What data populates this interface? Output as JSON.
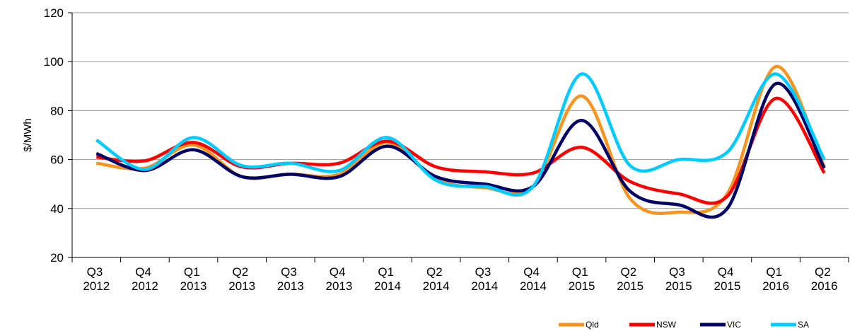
{
  "chart_data": {
    "type": "line",
    "y_label": "$/MWh",
    "categories": [
      "Q3 2012",
      "Q4 2012",
      "Q1 2013",
      "Q2 2013",
      "Q3 2013",
      "Q4 2013",
      "Q1 2014",
      "Q2 2014",
      "Q3 2014",
      "Q4 2014",
      "Q1 2015",
      "Q2 2015",
      "Q3 2015",
      "Q4 2015",
      "Q1 2016",
      "Q2 2016"
    ],
    "series": [
      {
        "name": "Qld",
        "color": "#f7941d",
        "values": [
          58.5,
          56.5,
          66,
          53,
          54,
          54,
          67,
          52,
          48.5,
          49,
          86,
          44,
          38.5,
          46,
          98,
          57
        ]
      },
      {
        "name": "NSW",
        "color": "#ff0000",
        "values": [
          61,
          59.5,
          67,
          57,
          58.5,
          58.5,
          67.5,
          57,
          55,
          54.5,
          65,
          51,
          46,
          45,
          85,
          54.5
        ]
      },
      {
        "name": "VIC",
        "color": "#000066",
        "values": [
          62.5,
          55.5,
          64,
          53,
          54,
          53,
          65.5,
          53,
          50,
          49,
          76,
          47,
          41.5,
          40,
          91,
          56.5
        ]
      },
      {
        "name": "SA",
        "color": "#00ccff",
        "values": [
          68,
          56,
          69,
          57.5,
          58.5,
          55.5,
          69,
          51.5,
          49,
          49,
          95,
          57.5,
          60,
          63,
          95,
          60
        ]
      }
    ],
    "ylim": [
      20,
      120
    ],
    "yticks": [
      20,
      40,
      60,
      80,
      100,
      120
    ],
    "grid": true,
    "legend": "bottom-right"
  }
}
